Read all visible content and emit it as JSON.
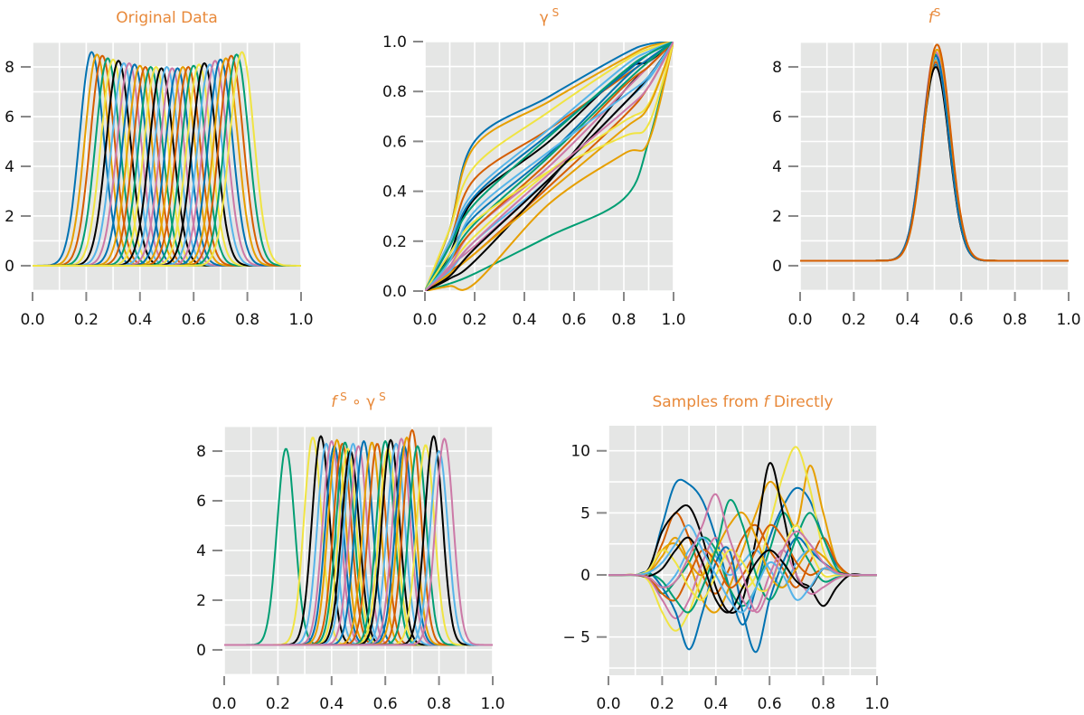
{
  "palette": [
    "#0072B2",
    "#E69F00",
    "#D55E00",
    "#009E73",
    "#F0E442",
    "#000000",
    "#56B4E9",
    "#CC79A7"
  ],
  "title_color": "#E8893A",
  "panel_bg": "#E5E6E5",
  "chart_data": [
    {
      "id": "original",
      "type": "line",
      "title": "Original Data",
      "title_parts": [
        {
          "t": "Original Data"
        }
      ],
      "xlim": [
        0,
        1
      ],
      "ylim": [
        -1.02,
        9.02
      ],
      "xticks": [
        0,
        0.2,
        0.4,
        0.6,
        0.8,
        1.0
      ],
      "xtick_labels": [
        "0.0",
        "0.2",
        "0.4",
        "0.6",
        "0.8",
        "1.0"
      ],
      "yticks": [
        0,
        2,
        4,
        6,
        8
      ],
      "ytick_labels": [
        "0",
        "2",
        "4",
        "6",
        "8"
      ],
      "grid": true,
      "generator": "gaussian",
      "sigma": 0.045,
      "baseline": 0,
      "color_offset": 0,
      "peaks": [
        [
          0.22,
          8.6
        ],
        [
          0.24,
          8.5
        ],
        [
          0.26,
          8.45
        ],
        [
          0.28,
          8.35
        ],
        [
          0.3,
          8.3
        ],
        [
          0.32,
          8.25
        ],
        [
          0.34,
          8.15
        ],
        [
          0.36,
          8.15
        ],
        [
          0.38,
          8.1
        ],
        [
          0.4,
          8.05
        ],
        [
          0.42,
          8.0
        ],
        [
          0.44,
          8.0
        ],
        [
          0.46,
          8.0
        ],
        [
          0.48,
          7.95
        ],
        [
          0.5,
          8.0
        ],
        [
          0.52,
          7.95
        ],
        [
          0.54,
          7.95
        ],
        [
          0.56,
          8.0
        ],
        [
          0.58,
          8.0
        ],
        [
          0.6,
          8.05
        ],
        [
          0.62,
          8.1
        ],
        [
          0.64,
          8.15
        ],
        [
          0.66,
          8.1
        ],
        [
          0.68,
          8.25
        ],
        [
          0.7,
          8.3
        ],
        [
          0.72,
          8.35
        ],
        [
          0.74,
          8.45
        ],
        [
          0.76,
          8.5
        ],
        [
          0.78,
          8.6
        ]
      ]
    },
    {
      "id": "gamma",
      "type": "line",
      "title": "γ S",
      "title_parts": [
        {
          "t": "γ"
        },
        {
          "t": " S",
          "sup": true
        }
      ],
      "xlim": [
        0,
        1
      ],
      "ylim": [
        0,
        1
      ],
      "xticks": [
        0,
        0.2,
        0.4,
        0.6,
        0.8,
        1.0
      ],
      "xtick_labels": [
        "0.0",
        "0.2",
        "0.4",
        "0.6",
        "0.8",
        "1.0"
      ],
      "yticks": [
        0,
        0.2,
        0.4,
        0.6,
        0.8,
        1.0
      ],
      "ytick_labels": [
        "0.0",
        "0.2",
        "0.4",
        "0.6",
        "0.8",
        "1.0"
      ],
      "grid": true,
      "generator": "points",
      "color_offset": 0,
      "x": [
        0,
        0.1,
        0.2,
        0.5,
        0.8,
        0.9,
        1.0
      ],
      "series": [
        [
          0,
          0.25,
          0.6,
          0.78,
          0.95,
          0.99,
          1
        ],
        [
          0,
          0.25,
          0.58,
          0.76,
          0.93,
          0.98,
          1
        ],
        [
          0,
          0.2,
          0.45,
          0.65,
          0.86,
          0.93,
          1
        ],
        [
          0,
          0.03,
          0.07,
          0.22,
          0.37,
          0.6,
          1
        ],
        [
          0,
          0.25,
          0.5,
          0.72,
          0.92,
          0.97,
          1
        ],
        [
          0,
          0.15,
          0.37,
          0.6,
          0.88,
          0.92,
          1
        ],
        [
          0,
          0.2,
          0.4,
          0.65,
          0.9,
          0.96,
          1
        ],
        [
          0,
          0.1,
          0.18,
          0.45,
          0.75,
          0.85,
          1
        ],
        [
          0,
          0.18,
          0.38,
          0.63,
          0.87,
          0.95,
          1
        ],
        [
          0,
          0.02,
          0.03,
          0.35,
          0.55,
          0.6,
          1
        ],
        [
          0,
          0.08,
          0.15,
          0.42,
          0.7,
          0.82,
          1
        ],
        [
          0,
          0.18,
          0.35,
          0.62,
          0.88,
          0.95,
          1
        ],
        [
          0,
          0.1,
          0.22,
          0.48,
          0.68,
          0.75,
          1
        ],
        [
          0,
          0.05,
          0.12,
          0.44,
          0.8,
          0.9,
          1
        ],
        [
          0,
          0.08,
          0.2,
          0.45,
          0.75,
          0.85,
          1
        ],
        [
          0,
          0.1,
          0.25,
          0.5,
          0.8,
          0.9,
          1
        ],
        [
          0,
          0.15,
          0.3,
          0.55,
          0.85,
          0.93,
          1
        ],
        [
          0,
          0.07,
          0.15,
          0.4,
          0.65,
          0.74,
          1
        ],
        [
          0,
          0.12,
          0.25,
          0.52,
          0.82,
          0.9,
          1
        ],
        [
          0,
          0.13,
          0.27,
          0.54,
          0.83,
          0.92,
          1
        ],
        [
          0,
          0.15,
          0.28,
          0.48,
          0.62,
          0.67,
          1
        ],
        [
          0,
          0.06,
          0.17,
          0.45,
          0.75,
          0.86,
          1
        ],
        [
          0,
          0.12,
          0.32,
          0.56,
          0.78,
          0.86,
          1
        ],
        [
          0,
          0.09,
          0.2,
          0.47,
          0.72,
          0.82,
          1
        ]
      ]
    },
    {
      "id": "f_s",
      "type": "line",
      "title": "f S",
      "title_parts": [
        {
          "t": "f",
          "italic": true
        },
        {
          "t": "S",
          "sup": true
        }
      ],
      "xlim": [
        0,
        1
      ],
      "ylim": [
        -1.02,
        9.02
      ],
      "xticks": [
        0,
        0.2,
        0.4,
        0.6,
        0.8,
        1.0
      ],
      "xtick_labels": [
        "0.0",
        "0.2",
        "0.4",
        "0.6",
        "0.8",
        "1.0"
      ],
      "yticks": [
        0,
        2,
        4,
        6,
        8
      ],
      "ytick_labels": [
        "0",
        "2",
        "4",
        "6",
        "8"
      ],
      "grid": true,
      "generator": "gaussian",
      "sigma": 0.05,
      "baseline": 0.2,
      "color_offset": 0,
      "peaks": [
        [
          0.505,
          8.1
        ],
        [
          0.505,
          8.3
        ],
        [
          0.505,
          8.2
        ],
        [
          0.505,
          8.5
        ],
        [
          0.505,
          8.4
        ],
        [
          0.505,
          8.0
        ],
        [
          0.505,
          8.35
        ],
        [
          0.505,
          8.6
        ],
        [
          0.505,
          8.45
        ],
        [
          0.51,
          8.7
        ],
        [
          0.51,
          8.9
        ]
      ]
    },
    {
      "id": "f_s_gamma_s",
      "type": "line",
      "title": "f S ∘ γ S",
      "title_parts": [
        {
          "t": "f",
          "italic": true
        },
        {
          "t": "S",
          "sup": true
        },
        {
          "t": " ○ γ"
        },
        {
          "t": " S",
          "sup": true
        }
      ],
      "xlim": [
        0,
        1
      ],
      "ylim": [
        -1.02,
        9.02
      ],
      "xticks": [
        0,
        0.2,
        0.4,
        0.6,
        0.8,
        1.0
      ],
      "xtick_labels": [
        "0.0",
        "0.2",
        "0.4",
        "0.6",
        "0.8",
        "1.0"
      ],
      "yticks": [
        0,
        2,
        4,
        6,
        8
      ],
      "ytick_labels": [
        "0",
        "2",
        "4",
        "6",
        "8"
      ],
      "grid": true,
      "generator": "gaussian",
      "sigma": 0.033,
      "baseline": 0.2,
      "color_offset": 3,
      "peaks": [
        [
          0.23,
          8.1
        ],
        [
          0.33,
          8.55
        ],
        [
          0.36,
          8.6
        ],
        [
          0.38,
          8.3
        ],
        [
          0.4,
          8.4
        ],
        [
          0.41,
          8.2
        ],
        [
          0.42,
          8.45
        ],
        [
          0.44,
          8.3
        ],
        [
          0.45,
          8.35
        ],
        [
          0.46,
          8.1
        ],
        [
          0.47,
          8.0
        ],
        [
          0.48,
          8.3
        ],
        [
          0.5,
          8.2
        ],
        [
          0.52,
          8.4
        ],
        [
          0.55,
          8.35
        ],
        [
          0.57,
          8.3
        ],
        [
          0.6,
          8.4
        ],
        [
          0.61,
          8.1
        ],
        [
          0.62,
          8.45
        ],
        [
          0.64,
          8.3
        ],
        [
          0.66,
          8.5
        ],
        [
          0.67,
          8.2
        ],
        [
          0.68,
          8.55
        ],
        [
          0.7,
          8.85
        ],
        [
          0.72,
          8.2
        ],
        [
          0.75,
          8.25
        ],
        [
          0.78,
          8.6
        ],
        [
          0.8,
          8.0
        ],
        [
          0.82,
          8.5
        ]
      ]
    },
    {
      "id": "samples",
      "type": "line",
      "title": "Samples from f Directly",
      "title_parts": [
        {
          "t": "Samples from "
        },
        {
          "t": "f",
          "italic": true
        },
        {
          "t": " Directly"
        }
      ],
      "xlim": [
        0,
        1
      ],
      "ylim": [
        -8.08,
        12.02
      ],
      "xticks": [
        0,
        0.2,
        0.4,
        0.6,
        0.8,
        1.0
      ],
      "xtick_labels": [
        "0.0",
        "0.2",
        "0.4",
        "0.6",
        "0.8",
        "1.0"
      ],
      "yticks": [
        -5,
        0,
        5,
        10
      ],
      "ytick_labels": [
        "− 5",
        "0",
        "5",
        "10"
      ],
      "grid": true,
      "generator": "points",
      "color_offset": 0,
      "x": [
        0,
        0.05,
        0.1,
        0.15,
        0.2,
        0.25,
        0.3,
        0.35,
        0.4,
        0.45,
        0.5,
        0.55,
        0.6,
        0.65,
        0.7,
        0.75,
        0.8,
        0.85,
        0.9,
        0.95,
        1.0
      ],
      "series": [
        [
          0,
          0,
          0,
          0.3,
          4,
          7.4,
          7.3,
          6,
          3,
          -1,
          -4,
          -1,
          3,
          5.5,
          7,
          6,
          3,
          0.8,
          0,
          0,
          0
        ],
        [
          0,
          0,
          0,
          0.2,
          1.5,
          3,
          1,
          -2,
          -3,
          -1,
          2,
          5,
          7.5,
          6,
          4,
          8.8,
          5,
          1,
          0,
          0,
          0
        ],
        [
          0,
          0,
          0,
          0.2,
          2.5,
          5,
          3,
          0,
          -1.5,
          0.5,
          3,
          4,
          2,
          0.5,
          -1,
          1,
          3,
          1,
          0,
          0,
          0
        ],
        [
          0,
          0,
          0,
          -0.3,
          -1.5,
          -0.5,
          1,
          3,
          2,
          -1,
          -2.5,
          -1,
          2,
          5,
          3,
          1,
          -0.5,
          -0.2,
          0,
          0,
          0
        ],
        [
          0,
          0,
          0,
          -0.5,
          -3,
          -4.5,
          -3,
          0,
          2,
          1,
          -1,
          0,
          4,
          8,
          10.3,
          7,
          2,
          0.3,
          0,
          0,
          0
        ],
        [
          0,
          0,
          0,
          0.5,
          3.5,
          5,
          5.5,
          3,
          -1,
          -3,
          -2,
          3,
          9,
          5,
          0,
          -1,
          -2.5,
          -1,
          0,
          0,
          0
        ],
        [
          0,
          0,
          0,
          -0.2,
          -1,
          0,
          2,
          3,
          1.5,
          0,
          1,
          2,
          0.5,
          -1,
          1,
          2,
          1,
          0.3,
          0,
          0,
          0
        ],
        [
          0,
          0,
          0,
          -0.3,
          -2,
          -3.5,
          -2,
          1,
          3,
          1,
          -2,
          -2.8,
          0,
          2,
          0,
          -1.5,
          -1,
          -0.3,
          0,
          0,
          0
        ],
        [
          0,
          0,
          0,
          0.2,
          -1,
          -3,
          -6,
          -3,
          1,
          2,
          -3,
          -6.2,
          -2,
          1,
          3,
          2,
          1,
          0.3,
          0,
          0,
          0
        ],
        [
          0,
          0,
          0,
          0.3,
          2,
          2.5,
          1,
          0,
          2,
          4,
          5,
          3,
          0,
          -1,
          0.5,
          2,
          1.5,
          0.3,
          0,
          0,
          0
        ],
        [
          0,
          0,
          0,
          -0.2,
          -1.5,
          -2,
          0,
          2,
          1,
          -1,
          0,
          2,
          4,
          3,
          1,
          0,
          0.5,
          0.2,
          0,
          0,
          0
        ],
        [
          0,
          0,
          0,
          0.1,
          -0.5,
          -2,
          -3,
          -1,
          2,
          6,
          4,
          0,
          -2,
          0,
          3,
          5,
          3,
          0.5,
          0,
          0,
          0
        ],
        [
          0,
          0,
          0,
          0.4,
          2,
          1,
          -1,
          -2,
          0,
          2,
          1,
          -1,
          -1,
          2,
          4,
          2,
          0,
          0,
          0,
          0,
          0
        ],
        [
          0,
          0,
          0,
          -0.1,
          0.5,
          2,
          3,
          1,
          -2,
          -3,
          -1,
          1,
          2,
          1,
          -0.5,
          -1,
          0.5,
          0.2,
          0,
          0,
          0
        ],
        [
          0,
          0,
          0,
          0.2,
          1,
          2.5,
          4,
          2,
          0,
          -2,
          -3,
          -1,
          1,
          0,
          -2,
          -1,
          0.5,
          0.1,
          0,
          0,
          0
        ],
        [
          0,
          0,
          0,
          -0.2,
          -1,
          -0.5,
          1.5,
          4,
          6.5,
          3,
          0,
          -3,
          -1,
          2,
          3.5,
          2.5,
          1,
          0.2,
          0,
          0,
          0
        ]
      ]
    }
  ]
}
